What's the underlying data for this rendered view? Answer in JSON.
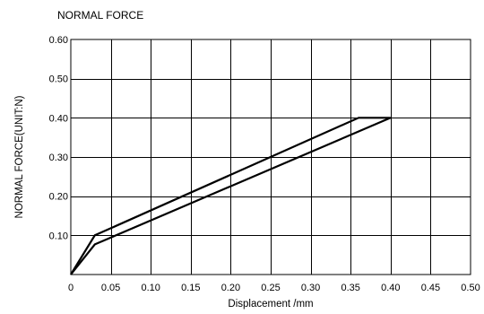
{
  "chart_data": {
    "type": "line",
    "title": "NORMAL FORCE",
    "xlabel": "Displacement /mm",
    "ylabel": "NORMAL FORCE(UNIT:N)",
    "xlim": [
      0,
      0.5
    ],
    "ylim": [
      0,
      0.6
    ],
    "x_ticks": [
      0,
      0.05,
      0.1,
      0.15,
      0.2,
      0.25,
      0.3,
      0.35,
      0.4,
      0.45,
      0.5
    ],
    "x_tick_labels": [
      "0",
      "0.05",
      "0.10",
      "0.15",
      "0.20",
      "0.25",
      "0.30",
      "0.35",
      "0.40",
      "0.45",
      "0.50"
    ],
    "y_ticks": [
      0.1,
      0.2,
      0.3,
      0.4,
      0.5,
      0.6
    ],
    "y_tick_labels": [
      "0.10",
      "0.20",
      "0.30",
      "0.40",
      "0.50",
      "0.60"
    ],
    "grid": true,
    "series": [
      {
        "color": "#000000",
        "x": [
          0,
          0.03,
          0.36,
          0.4
        ],
        "y": [
          0,
          0.1,
          0.4,
          0.4
        ]
      },
      {
        "color": "#000000",
        "x": [
          0,
          0.03,
          0.4
        ],
        "y": [
          0,
          0.077,
          0.4
        ]
      }
    ]
  }
}
